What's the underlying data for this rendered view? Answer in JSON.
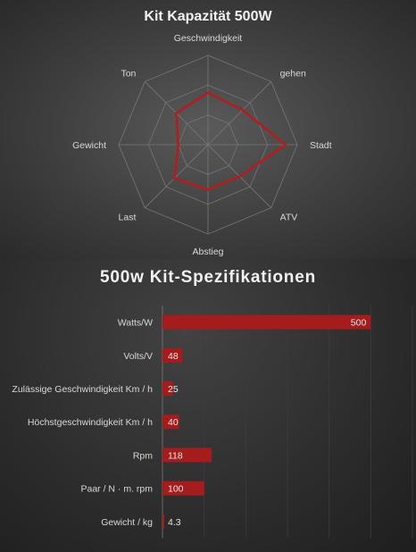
{
  "chart_data": [
    {
      "type": "radar",
      "title": "Kit Kapazität 500W",
      "categories": [
        "Geschwindigkeit",
        "gehen",
        "Stadt",
        "ATV",
        "Abstieg",
        "Last",
        "Gewicht",
        "Ton"
      ],
      "series": [
        {
          "values": [
            3.5,
            3.3,
            5.2,
            3.0,
            3.0,
            3.2,
            2.0,
            3.0
          ]
        }
      ],
      "rmax": 6,
      "grid": true,
      "colors": {
        "series": "#b01e1e",
        "grid": "#777777"
      }
    },
    {
      "type": "bar",
      "orientation": "horizontal",
      "title": "500w Kit-Spezifikationen",
      "categories": [
        "Watts/W",
        "Volts/V",
        "Zulässige Geschwindigkeit Km / h",
        "Höchstgeschwindigkeit Km / h",
        "Rpm",
        "Paar / N · m. rpm",
        "Gewicht / kg"
      ],
      "values": [
        500,
        48,
        25,
        40,
        118,
        100,
        4.3
      ],
      "xlim": [
        0,
        600
      ],
      "grid": true,
      "colors": {
        "bar": "#a51c1c",
        "grid": "#3c3c3c"
      }
    }
  ]
}
